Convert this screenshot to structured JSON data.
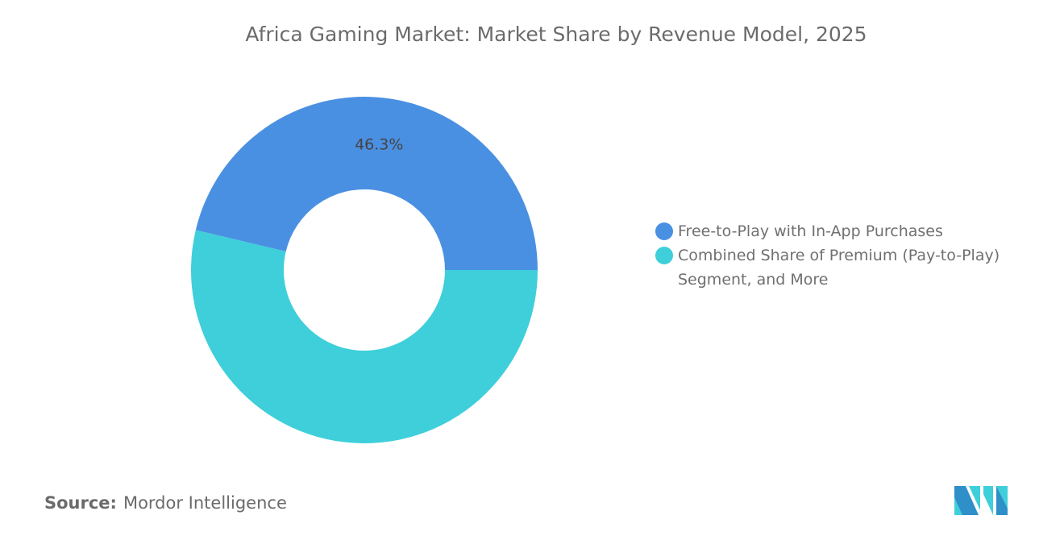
{
  "chart_data": {
    "type": "pie",
    "variant": "donut",
    "title": "Africa Gaming Market: Market Share by Revenue Model, 2025",
    "categories": [
      "Free-to-Play with In-App Purchases",
      "Combined Share of Premium (Pay-to-Play) Segment, and More"
    ],
    "values": [
      46.3,
      53.7
    ],
    "data_labels": [
      "46.3%",
      ""
    ],
    "colors": [
      "#4a90e2",
      "#3ecfda"
    ],
    "legend_position": "right"
  },
  "source": {
    "label": "Source:",
    "value": "Mordor Intelligence"
  },
  "logo": {
    "name": "mordor-intelligence-logo"
  }
}
